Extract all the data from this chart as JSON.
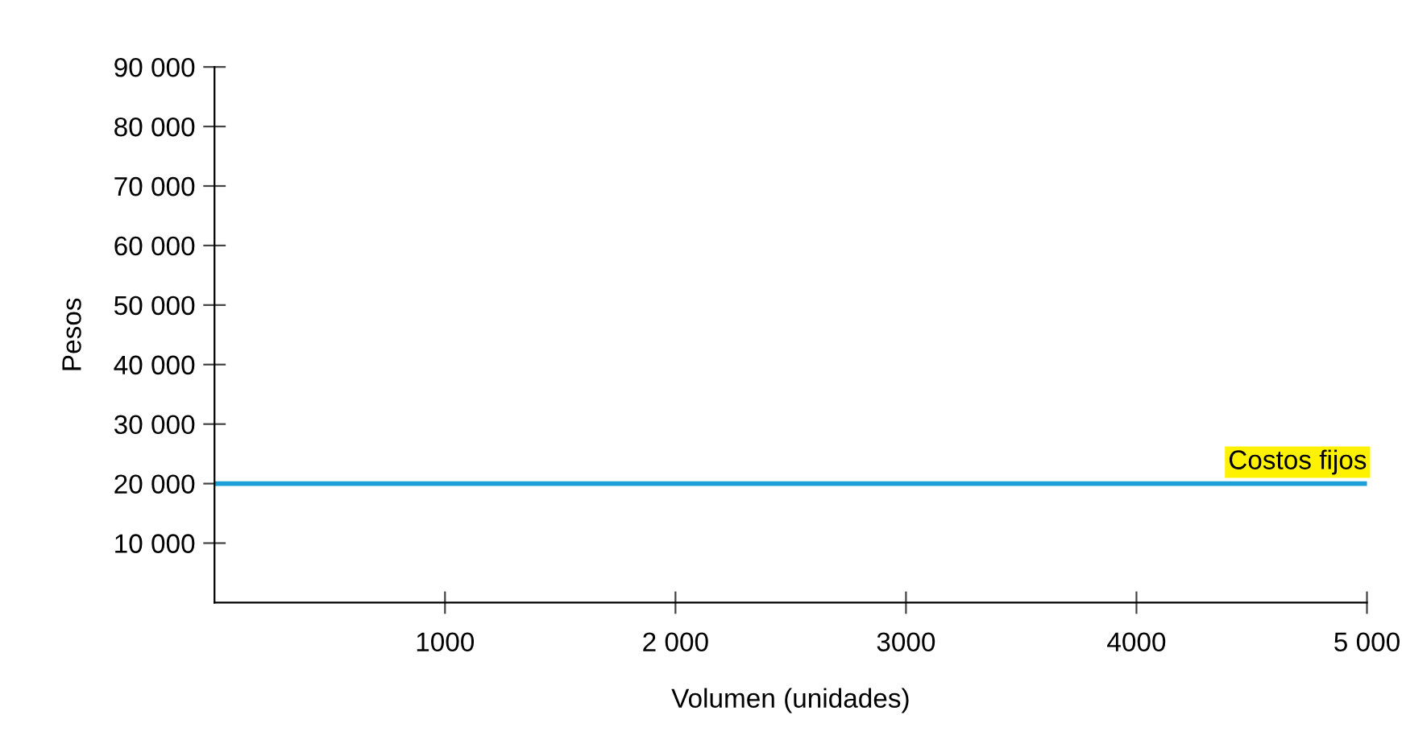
{
  "chart_data": {
    "type": "line",
    "xlabel": "Volumen (unidades)",
    "ylabel": "Pesos",
    "series": [
      {
        "name": "Costos fijos",
        "color": "#1a9fd6",
        "x": [
          0,
          5000
        ],
        "values": [
          20000,
          20000
        ]
      }
    ],
    "xlim": [
      0,
      5000
    ],
    "xticks": [
      {
        "value": 1000,
        "label": "1000"
      },
      {
        "value": 2000,
        "label": "2 000"
      },
      {
        "value": 3000,
        "label": "3000"
      },
      {
        "value": 4000,
        "label": "4000"
      },
      {
        "value": 5000,
        "label": "5 000"
      }
    ],
    "ylim": [
      0,
      90000
    ],
    "yticks": [
      {
        "value": 10000,
        "label": "10 000"
      },
      {
        "value": 20000,
        "label": "20 000"
      },
      {
        "value": 30000,
        "label": "30 000"
      },
      {
        "value": 40000,
        "label": "40 000"
      },
      {
        "value": 50000,
        "label": "50 000"
      },
      {
        "value": 60000,
        "label": "60 000"
      },
      {
        "value": 70000,
        "label": "70 000"
      },
      {
        "value": 80000,
        "label": "80 000"
      },
      {
        "value": 90000,
        "label": "90 000"
      }
    ],
    "grid": false,
    "legend": false
  }
}
